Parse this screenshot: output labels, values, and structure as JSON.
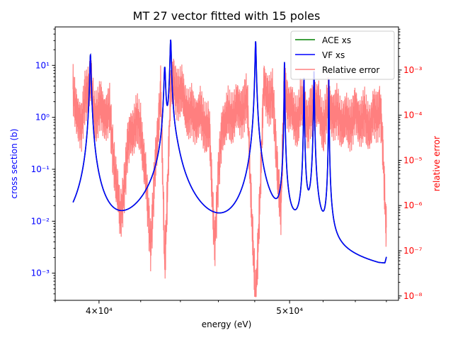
{
  "chart_data": {
    "type": "line",
    "title": "MT 27 vector fitted with 15 poles",
    "xlabel": "energy (eV)",
    "ylabel_left": "cross section (b)",
    "ylabel_right": "relative error",
    "x_scale": "log",
    "y_scale_left": "log",
    "y_scale_right": "log",
    "xlim": [
      38000,
      56800
    ],
    "ylim_left": [
      0.0003,
      55
    ],
    "ylim_right": [
      8e-09,
      0.009
    ],
    "grid": false,
    "legend_position": "top-right",
    "x_ticks": [
      {
        "value": 40000,
        "label": "4×10⁴"
      },
      {
        "value": 50000,
        "label": "5×10⁴"
      }
    ],
    "y_ticks_left": [
      {
        "value": 0.001,
        "label": "10⁻³"
      },
      {
        "value": 0.01,
        "label": "10⁻²"
      },
      {
        "value": 0.1,
        "label": "10⁻¹"
      },
      {
        "value": 1,
        "label": "10⁰"
      },
      {
        "value": 10,
        "label": "10¹"
      }
    ],
    "y_ticks_right": [
      {
        "value": 1e-08,
        "label": "10⁻⁸"
      },
      {
        "value": 1e-07,
        "label": "10⁻⁷"
      },
      {
        "value": 1e-06,
        "label": "10⁻⁶"
      },
      {
        "value": 1e-05,
        "label": "10⁻⁵"
      },
      {
        "value": 0.0001,
        "label": "10⁻⁴"
      },
      {
        "value": 0.001,
        "label": "10⁻³"
      }
    ],
    "x_range_data": [
      38800,
      56000
    ],
    "xs_background": [
      [
        38800,
        0.00088
      ],
      [
        40500,
        0.00083
      ],
      [
        42000,
        0.00092
      ],
      [
        44000,
        0.00078
      ],
      [
        46000,
        0.00072
      ],
      [
        47500,
        0.0008
      ],
      [
        49500,
        0.00068
      ],
      [
        51500,
        0.00055
      ],
      [
        53500,
        0.00052
      ],
      [
        55500,
        0.00052
      ],
      [
        55900,
        0.0006
      ],
      [
        56000,
        0.0011
      ]
    ],
    "resonances": [
      {
        "energy": 39600,
        "peak": 16,
        "width": 28
      },
      {
        "energy": 43200,
        "peak": 9,
        "width": 38
      },
      {
        "energy": 43500,
        "peak": 31,
        "width": 30
      },
      {
        "energy": 43700,
        "peak": 0.13,
        "width": 260
      },
      {
        "energy": 48050,
        "peak": 29,
        "width": 28
      },
      {
        "energy": 49700,
        "peak": 12,
        "width": 12
      },
      {
        "energy": 50850,
        "peak": 6,
        "width": 14
      },
      {
        "energy": 51450,
        "peak": 8,
        "width": 16
      },
      {
        "energy": 52350,
        "peak": 6,
        "width": 10
      }
    ],
    "series": [
      {
        "name": "ACE xs",
        "color": "#008000",
        "role": "cross_section"
      },
      {
        "name": "VF xs",
        "color": "#0000ff",
        "role": "cross_section"
      },
      {
        "name": "Relative error",
        "color": "#ff0000",
        "opacity": 0.5,
        "role": "relative_error"
      }
    ],
    "relative_error_envelope": [
      [
        38800,
        0.0015
      ],
      [
        39000,
        0.0008
      ],
      [
        39200,
        0.00025
      ],
      [
        39350,
        0.002
      ],
      [
        39600,
        0.003
      ],
      [
        39800,
        0.0007
      ],
      [
        40100,
        0.0008
      ],
      [
        40500,
        0.0006
      ],
      [
        41000,
        3e-06
      ],
      [
        41500,
        0.0003
      ],
      [
        42000,
        0.0004
      ],
      [
        42500,
        1e-06
      ],
      [
        43000,
        0.003
      ],
      [
        43200,
        2e-07
      ],
      [
        43500,
        0.003
      ],
      [
        44000,
        0.002
      ],
      [
        44500,
        0.0006
      ],
      [
        45000,
        0.0006
      ],
      [
        45500,
        0.0003
      ],
      [
        45800,
        1e-06
      ],
      [
        46200,
        0.0004
      ],
      [
        47000,
        0.0008
      ],
      [
        47600,
        0.001
      ],
      [
        48050,
        3e-08
      ],
      [
        48500,
        0.002
      ],
      [
        49000,
        0.0015
      ],
      [
        49500,
        4e-06
      ],
      [
        49700,
        0.003
      ],
      [
        50000,
        0.0008
      ],
      [
        50500,
        0.0005
      ],
      [
        50850,
        0.0015
      ],
      [
        51100,
        0.0003
      ],
      [
        51450,
        0.0015
      ],
      [
        52000,
        0.0004
      ],
      [
        52350,
        0.001
      ],
      [
        52800,
        0.0006
      ],
      [
        53500,
        0.0004
      ],
      [
        54000,
        0.0006
      ],
      [
        55000,
        0.0004
      ],
      [
        55600,
        0.001
      ],
      [
        56000,
        2e-06
      ]
    ]
  }
}
